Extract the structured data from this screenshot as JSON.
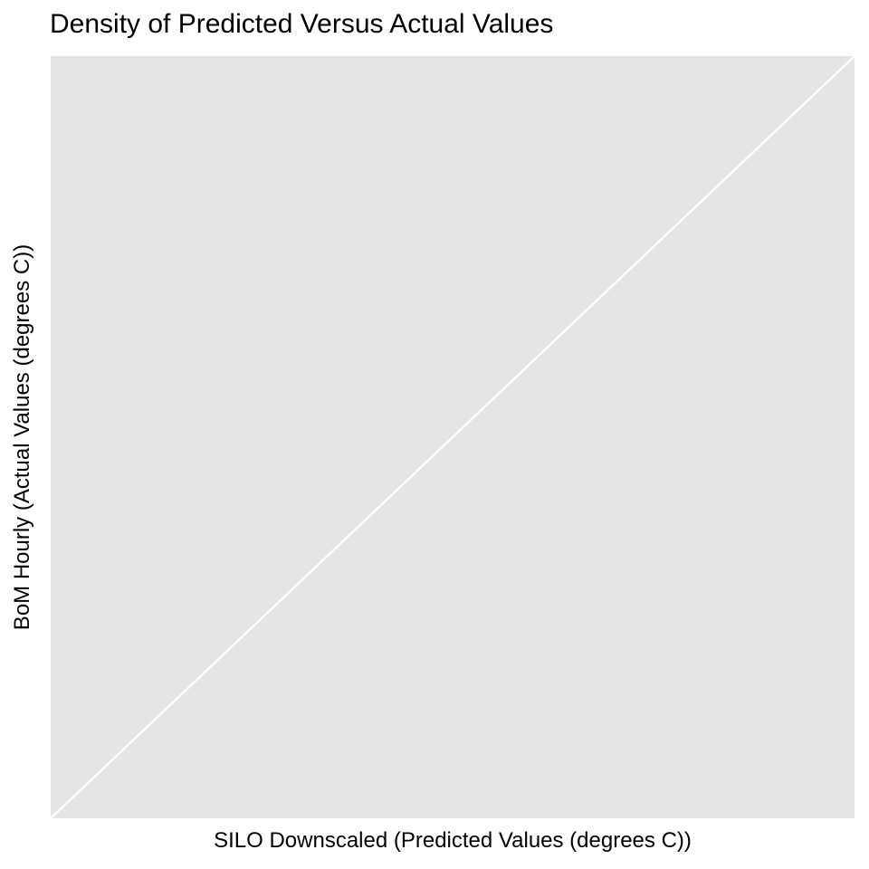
{
  "chart_data": {
    "type": "heatmap",
    "title": "Density of Predicted Versus Actual Values",
    "xlabel": "SILO Downscaled (Predicted Values (degrees C))",
    "ylabel": "BoM Hourly (Actual Values (degrees C))",
    "x_tick_labels": [],
    "y_tick_labels": [],
    "reference_line": {
      "description": "identity line y = x",
      "x": [
        0,
        1
      ],
      "y": [
        0,
        1
      ],
      "color": "#ffffff"
    },
    "grid": false,
    "legend": "none",
    "colors": {
      "panel_background": "#e5e5e5",
      "reference_line": "#ffffff",
      "page_background": "#ffffff"
    }
  }
}
